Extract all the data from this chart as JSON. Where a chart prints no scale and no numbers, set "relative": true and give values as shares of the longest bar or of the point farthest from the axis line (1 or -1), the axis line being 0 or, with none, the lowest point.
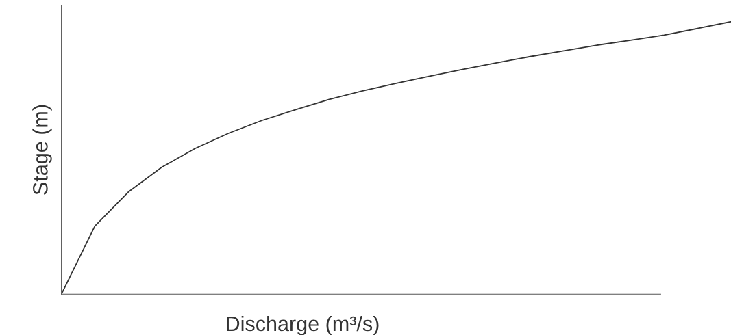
{
  "chart_data": {
    "type": "line",
    "relative": true,
    "xlabel": "Discharge (m³/s)",
    "ylabel": "Stage (m)",
    "categories": [
      null,
      null,
      null,
      null,
      null,
      null,
      null,
      null,
      null,
      null,
      null,
      null,
      null,
      null,
      null,
      null,
      null,
      null,
      null,
      null,
      null
    ],
    "series": [
      {
        "color": "#333333",
        "values": [
          0,
          0.25,
          0.375,
          0.466,
          0.535,
          0.591,
          0.638,
          0.677,
          0.715,
          0.746,
          0.774,
          0.8,
          0.825,
          0.849,
          0.872,
          0.893,
          0.914,
          0.932,
          0.951,
          0.975,
          1
        ]
      }
    ],
    "grid": false,
    "marker": "none",
    "line_style": "solid"
  }
}
